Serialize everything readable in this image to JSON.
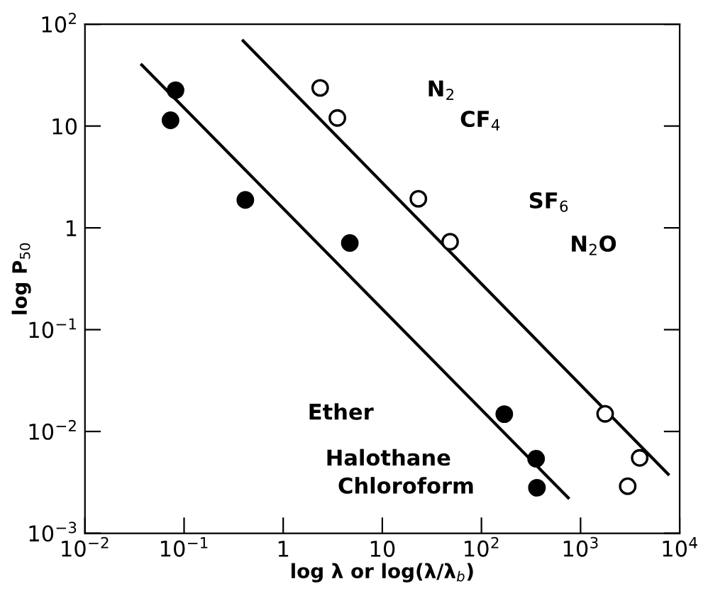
{
  "chart_data": {
    "type": "scatter",
    "xlabel": "log λ or log(λ/λ$_{b}$)",
    "ylabel": "log P$_{50}$",
    "log": "xy",
    "grid": false,
    "legend": false,
    "xlim": [
      0.01,
      10000
    ],
    "ylim": [
      0.001,
      100
    ],
    "xticks": [
      {
        "value": 0.01,
        "label": "10$^{−2}$"
      },
      {
        "value": 0.1,
        "label": "10$^{−1}$"
      },
      1,
      10,
      {
        "value": 100,
        "label": "10$^{2}$"
      },
      {
        "value": 1000,
        "label": "10$^{3}$"
      },
      {
        "value": 10000,
        "label": "10$^{4}$"
      }
    ],
    "yticks": [
      {
        "value": 0.001,
        "label": "10$^{−3}$"
      },
      {
        "value": 0.01,
        "label": "10$^{−2}$"
      },
      {
        "value": 0.1,
        "label": "10$^{−1}$"
      },
      1,
      10,
      {
        "value": 100,
        "label": "10$^{2}$"
      }
    ],
    "series": [
      {
        "marker": "circle",
        "color": "#000000",
        "x": [
          0.082,
          0.073,
          0.415,
          4.7,
          170,
          356,
          363
        ],
        "values": [
          22.5,
          11.4,
          1.88,
          0.71,
          0.0148,
          0.0054,
          0.0028
        ]
      },
      {
        "marker": "circle",
        "color": "#ffffff",
        "x": [
          2.36,
          3.52,
          23.1,
          48.3,
          1770,
          3950,
          2990
        ],
        "values": [
          23.7,
          12.0,
          1.93,
          0.73,
          0.0149,
          0.0055,
          0.0029
        ]
      },
      {
        "type": "line",
        "marker": "none",
        "line_style": "solid",
        "color": "#000000",
        "x": [
          0.0374,
          751
        ],
        "values": [
          39.9,
          0.00223
        ]
      },
      {
        "type": "line",
        "marker": "none",
        "line_style": "solid",
        "color": "#000000",
        "x": [
          0.394,
          7660
        ],
        "values": [
          68.7,
          0.0038
        ]
      }
    ],
    "annotations": [
      "N$_{2}$",
      "CF$_{4}$",
      "SF$_{6}$",
      "N$_{2}$O",
      "Ether",
      "Halothane",
      "Chloroform"
    ]
  }
}
